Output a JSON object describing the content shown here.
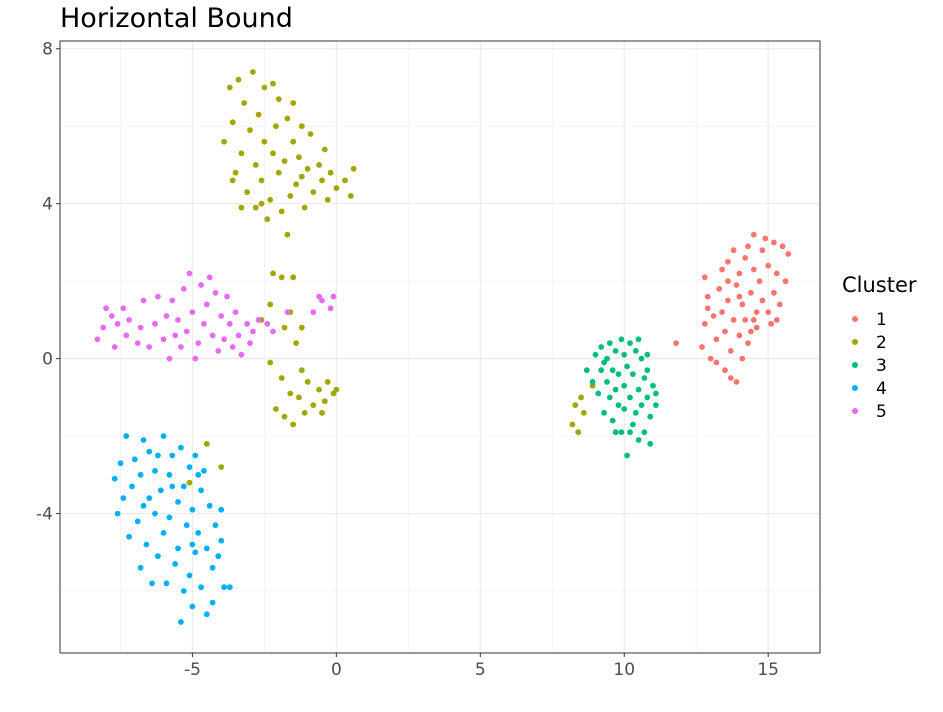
{
  "chart_data": {
    "type": "scatter",
    "title": "Horizontal Bound",
    "xlabel": "",
    "ylabel": "",
    "xlim": [
      -9.6,
      16.8
    ],
    "ylim": [
      -7.6,
      8.2
    ],
    "x_ticks": [
      -5,
      0,
      5,
      10,
      15
    ],
    "x_tick_labels": [
      "-5",
      "0",
      "5",
      "10",
      "15"
    ],
    "y_ticks": [
      -4,
      0,
      4,
      8
    ],
    "y_tick_labels": [
      "-4",
      "0",
      "4",
      "8"
    ],
    "grid": true,
    "legend": {
      "title": "Cluster",
      "placement": "right"
    },
    "series": [
      {
        "name": "1",
        "color": "#F8766D",
        "points": [
          [
            11.8,
            0.4
          ],
          [
            12.7,
            0.3
          ],
          [
            12.8,
            0.9
          ],
          [
            12.9,
            1.6
          ],
          [
            12.8,
            2.1
          ],
          [
            13.0,
            0.0
          ],
          [
            13.1,
            1.1
          ],
          [
            13.2,
            -0.1
          ],
          [
            13.2,
            0.5
          ],
          [
            13.3,
            1.8
          ],
          [
            13.4,
            2.3
          ],
          [
            13.4,
            1.2
          ],
          [
            13.5,
            -0.3
          ],
          [
            13.5,
            0.7
          ],
          [
            13.6,
            2.5
          ],
          [
            13.6,
            1.5
          ],
          [
            13.7,
            -0.5
          ],
          [
            13.7,
            0.2
          ],
          [
            13.8,
            1.0
          ],
          [
            13.8,
            2.8
          ],
          [
            13.9,
            1.9
          ],
          [
            13.9,
            -0.6
          ],
          [
            14.0,
            0.6
          ],
          [
            14.0,
            2.2
          ],
          [
            14.1,
            1.4
          ],
          [
            14.1,
            0.0
          ],
          [
            14.2,
            2.6
          ],
          [
            14.2,
            1.0
          ],
          [
            14.3,
            0.4
          ],
          [
            14.3,
            2.9
          ],
          [
            14.4,
            1.7
          ],
          [
            14.4,
            0.7
          ],
          [
            14.5,
            3.2
          ],
          [
            14.5,
            2.3
          ],
          [
            14.6,
            1.2
          ],
          [
            14.6,
            0.8
          ],
          [
            14.7,
            2.0
          ],
          [
            14.8,
            2.8
          ],
          [
            14.8,
            1.5
          ],
          [
            14.9,
            3.1
          ],
          [
            15.0,
            1.2
          ],
          [
            15.0,
            2.4
          ],
          [
            15.1,
            0.9
          ],
          [
            15.2,
            3.0
          ],
          [
            15.2,
            1.7
          ],
          [
            15.3,
            2.2
          ],
          [
            15.4,
            1.4
          ],
          [
            15.5,
            2.9
          ],
          [
            15.6,
            2.0
          ],
          [
            15.7,
            2.7
          ],
          [
            12.9,
            1.3
          ],
          [
            13.6,
            2.0
          ],
          [
            14.0,
            1.6
          ],
          [
            14.5,
            1.0
          ],
          [
            15.3,
            1.0
          ]
        ]
      },
      {
        "name": "2",
        "color": "#A3A500",
        "points": [
          [
            -3.9,
            5.6
          ],
          [
            -3.7,
            7.0
          ],
          [
            -3.6,
            6.1
          ],
          [
            -3.5,
            4.8
          ],
          [
            -3.4,
            7.2
          ],
          [
            -3.3,
            5.3
          ],
          [
            -3.2,
            6.6
          ],
          [
            -3.1,
            4.3
          ],
          [
            -3.0,
            5.9
          ],
          [
            -2.9,
            7.4
          ],
          [
            -2.8,
            3.9
          ],
          [
            -2.8,
            5.0
          ],
          [
            -2.7,
            6.3
          ],
          [
            -2.6,
            4.6
          ],
          [
            -2.5,
            5.6
          ],
          [
            -2.5,
            7.0
          ],
          [
            -2.4,
            3.6
          ],
          [
            -2.3,
            4.1
          ],
          [
            -2.2,
            5.3
          ],
          [
            -2.1,
            6.0
          ],
          [
            -2.0,
            4.8
          ],
          [
            -2.0,
            6.7
          ],
          [
            -1.9,
            3.8
          ],
          [
            -1.8,
            5.1
          ],
          [
            -1.7,
            6.2
          ],
          [
            -1.6,
            4.2
          ],
          [
            -1.5,
            5.6
          ],
          [
            -1.5,
            6.6
          ],
          [
            -1.4,
            4.5
          ],
          [
            -1.3,
            5.2
          ],
          [
            -1.2,
            6.0
          ],
          [
            -1.1,
            3.9
          ],
          [
            -1.0,
            4.9
          ],
          [
            -0.9,
            5.8
          ],
          [
            -0.8,
            4.3
          ],
          [
            -0.6,
            5.0
          ],
          [
            -0.5,
            4.6
          ],
          [
            -0.4,
            5.4
          ],
          [
            -0.3,
            4.1
          ],
          [
            -0.2,
            4.8
          ],
          [
            0.0,
            4.4
          ],
          [
            0.3,
            4.6
          ],
          [
            0.5,
            4.2
          ],
          [
            0.6,
            4.9
          ],
          [
            -3.3,
            3.9
          ],
          [
            -2.2,
            7.1
          ],
          [
            -1.7,
            3.2
          ],
          [
            -2.6,
            4.0
          ],
          [
            -3.6,
            4.6
          ],
          [
            -1.2,
            4.7
          ],
          [
            -2.2,
            2.2
          ],
          [
            -1.9,
            2.1
          ],
          [
            -2.3,
            1.4
          ],
          [
            -2.6,
            1.0
          ],
          [
            -1.5,
            2.1
          ],
          [
            -1.6,
            1.2
          ],
          [
            -1.8,
            0.8
          ],
          [
            -1.2,
            0.8
          ],
          [
            -1.4,
            0.4
          ],
          [
            -2.3,
            -0.1
          ],
          [
            -1.9,
            -0.5
          ],
          [
            -1.6,
            -0.9
          ],
          [
            -2.1,
            -1.3
          ],
          [
            -1.3,
            -1.0
          ],
          [
            -1.0,
            -0.6
          ],
          [
            -0.8,
            -1.2
          ],
          [
            -0.6,
            -0.8
          ],
          [
            -0.5,
            -1.4
          ],
          [
            -0.3,
            -0.6
          ],
          [
            -0.1,
            -0.9
          ],
          [
            -0.4,
            -1.1
          ],
          [
            -1.1,
            -1.4
          ],
          [
            -1.5,
            -1.7
          ],
          [
            -1.8,
            -1.5
          ],
          [
            -1.2,
            -0.3
          ],
          [
            0.0,
            -0.8
          ],
          [
            8.2,
            -1.7
          ],
          [
            8.6,
            -1.4
          ],
          [
            8.9,
            -0.7
          ],
          [
            8.5,
            -1.0
          ],
          [
            8.3,
            -1.2
          ],
          [
            8.4,
            -1.9
          ],
          [
            -4.5,
            -2.2
          ],
          [
            -4.0,
            -2.8
          ],
          [
            -5.1,
            -3.2
          ]
        ]
      },
      {
        "name": "3",
        "color": "#00BF7D",
        "points": [
          [
            8.7,
            -0.3
          ],
          [
            8.9,
            -0.6
          ],
          [
            9.0,
            0.1
          ],
          [
            9.1,
            -0.9
          ],
          [
            9.2,
            -0.3
          ],
          [
            9.2,
            0.3
          ],
          [
            9.3,
            -1.4
          ],
          [
            9.4,
            -0.6
          ],
          [
            9.4,
            0.0
          ],
          [
            9.5,
            -1.0
          ],
          [
            9.5,
            0.4
          ],
          [
            9.6,
            -0.3
          ],
          [
            9.6,
            -1.6
          ],
          [
            9.7,
            -0.8
          ],
          [
            9.7,
            0.2
          ],
          [
            9.8,
            -1.2
          ],
          [
            9.8,
            -0.4
          ],
          [
            9.9,
            0.5
          ],
          [
            9.9,
            -1.9
          ],
          [
            10.0,
            -0.7
          ],
          [
            10.0,
            0.1
          ],
          [
            10.0,
            -1.3
          ],
          [
            10.1,
            -2.5
          ],
          [
            10.1,
            -0.2
          ],
          [
            10.2,
            0.4
          ],
          [
            10.2,
            -1.0
          ],
          [
            10.3,
            -1.7
          ],
          [
            10.3,
            -0.4
          ],
          [
            10.4,
            0.2
          ],
          [
            10.4,
            -1.4
          ],
          [
            10.5,
            -2.1
          ],
          [
            10.5,
            -0.8
          ],
          [
            10.6,
            0.0
          ],
          [
            10.6,
            -1.2
          ],
          [
            10.7,
            -0.5
          ],
          [
            10.7,
            -1.9
          ],
          [
            10.8,
            -1.0
          ],
          [
            10.8,
            0.1
          ],
          [
            10.9,
            -2.2
          ],
          [
            10.9,
            -1.5
          ],
          [
            11.0,
            -0.7
          ],
          [
            11.1,
            -0.9
          ],
          [
            11.1,
            -1.2
          ],
          [
            9.3,
            -0.1
          ],
          [
            10.5,
            0.5
          ],
          [
            10.8,
            -0.3
          ],
          [
            9.7,
            -1.9
          ],
          [
            10.2,
            -1.9
          ]
        ]
      },
      {
        "name": "4",
        "color": "#00B0F6",
        "points": [
          [
            -7.7,
            -3.1
          ],
          [
            -7.6,
            -4.0
          ],
          [
            -7.5,
            -2.7
          ],
          [
            -7.4,
            -3.6
          ],
          [
            -7.3,
            -2.0
          ],
          [
            -7.2,
            -4.6
          ],
          [
            -7.1,
            -3.3
          ],
          [
            -7.0,
            -2.6
          ],
          [
            -6.9,
            -4.2
          ],
          [
            -6.8,
            -5.4
          ],
          [
            -6.8,
            -3.0
          ],
          [
            -6.7,
            -2.1
          ],
          [
            -6.6,
            -4.8
          ],
          [
            -6.5,
            -3.6
          ],
          [
            -6.5,
            -2.4
          ],
          [
            -6.4,
            -5.8
          ],
          [
            -6.3,
            -4.0
          ],
          [
            -6.3,
            -2.9
          ],
          [
            -6.2,
            -5.1
          ],
          [
            -6.1,
            -3.4
          ],
          [
            -6.0,
            -2.0
          ],
          [
            -6.0,
            -4.5
          ],
          [
            -5.9,
            -5.8
          ],
          [
            -5.8,
            -3.0
          ],
          [
            -5.8,
            -4.1
          ],
          [
            -5.7,
            -2.5
          ],
          [
            -5.6,
            -5.3
          ],
          [
            -5.5,
            -3.7
          ],
          [
            -5.5,
            -4.9
          ],
          [
            -5.4,
            -2.3
          ],
          [
            -5.3,
            -6.0
          ],
          [
            -5.3,
            -3.3
          ],
          [
            -5.2,
            -4.3
          ],
          [
            -5.1,
            -5.6
          ],
          [
            -5.1,
            -2.8
          ],
          [
            -5.0,
            -3.9
          ],
          [
            -5.0,
            -6.4
          ],
          [
            -4.9,
            -5.0
          ],
          [
            -4.9,
            -2.5
          ],
          [
            -4.8,
            -4.5
          ],
          [
            -4.7,
            -3.4
          ],
          [
            -4.7,
            -5.9
          ],
          [
            -4.6,
            -2.9
          ],
          [
            -4.5,
            -4.9
          ],
          [
            -4.5,
            -6.6
          ],
          [
            -4.4,
            -3.8
          ],
          [
            -4.3,
            -5.4
          ],
          [
            -4.3,
            -6.3
          ],
          [
            -4.2,
            -4.3
          ],
          [
            -4.1,
            -5.1
          ],
          [
            -4.0,
            -4.7
          ],
          [
            -3.9,
            -5.9
          ],
          [
            -4.0,
            -3.9
          ],
          [
            -5.4,
            -6.8
          ],
          [
            -6.2,
            -2.5
          ],
          [
            -5.0,
            -4.8
          ],
          [
            -3.7,
            -5.9
          ],
          [
            -6.7,
            -3.8
          ],
          [
            -5.7,
            -3.3
          ],
          [
            -4.8,
            -3.0
          ]
        ]
      },
      {
        "name": "5",
        "color": "#E76BF3",
        "points": [
          [
            -8.3,
            0.5
          ],
          [
            -8.1,
            0.8
          ],
          [
            -8.0,
            1.3
          ],
          [
            -7.8,
            1.1
          ],
          [
            -7.7,
            0.3
          ],
          [
            -7.6,
            0.9
          ],
          [
            -7.4,
            1.3
          ],
          [
            -7.3,
            0.6
          ],
          [
            -7.2,
            1.0
          ],
          [
            -6.9,
            0.4
          ],
          [
            -6.8,
            0.8
          ],
          [
            -6.7,
            1.5
          ],
          [
            -6.5,
            0.3
          ],
          [
            -6.3,
            0.9
          ],
          [
            -6.2,
            1.6
          ],
          [
            -6.0,
            0.5
          ],
          [
            -5.9,
            1.1
          ],
          [
            -5.8,
            0.0
          ],
          [
            -5.7,
            1.5
          ],
          [
            -5.6,
            0.6
          ],
          [
            -5.5,
            1.0
          ],
          [
            -5.4,
            0.3
          ],
          [
            -5.3,
            1.8
          ],
          [
            -5.2,
            0.7
          ],
          [
            -5.1,
            2.2
          ],
          [
            -5.0,
            1.2
          ],
          [
            -4.9,
            0.0
          ],
          [
            -4.8,
            0.4
          ],
          [
            -4.7,
            1.9
          ],
          [
            -4.6,
            0.9
          ],
          [
            -4.5,
            1.4
          ],
          [
            -4.4,
            2.1
          ],
          [
            -4.3,
            0.6
          ],
          [
            -4.2,
            1.7
          ],
          [
            -4.1,
            0.2
          ],
          [
            -4.0,
            1.1
          ],
          [
            -3.9,
            0.5
          ],
          [
            -3.8,
            1.6
          ],
          [
            -3.7,
            0.9
          ],
          [
            -3.6,
            0.3
          ],
          [
            -3.5,
            1.2
          ],
          [
            -3.4,
            0.6
          ],
          [
            -3.3,
            0.1
          ],
          [
            -3.1,
            0.9
          ],
          [
            -3.0,
            0.4
          ],
          [
            -2.9,
            0.7
          ],
          [
            -2.7,
            1.0
          ],
          [
            -2.4,
            0.9
          ],
          [
            -2.2,
            0.7
          ],
          [
            -1.7,
            1.2
          ],
          [
            -0.8,
            1.2
          ],
          [
            -0.5,
            1.5
          ],
          [
            -0.2,
            1.3
          ],
          [
            -0.1,
            1.6
          ],
          [
            -0.6,
            1.6
          ]
        ]
      }
    ]
  }
}
